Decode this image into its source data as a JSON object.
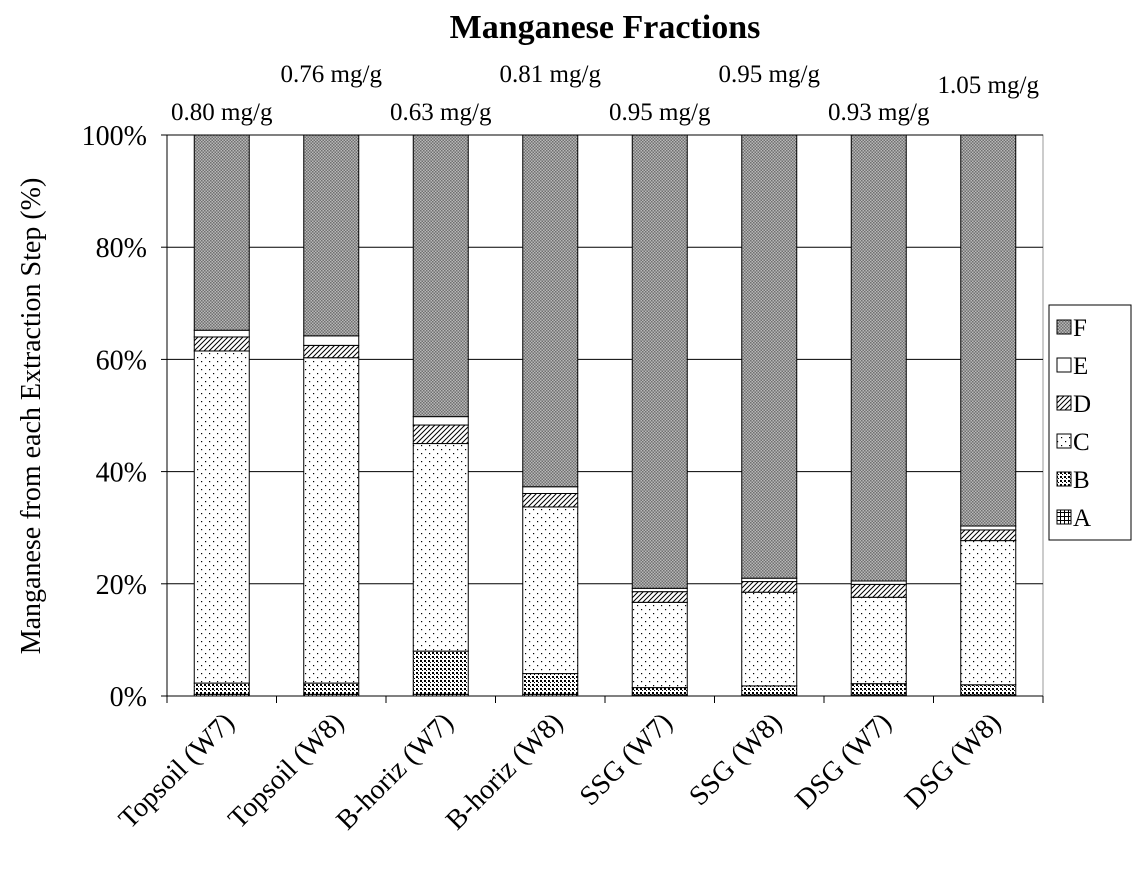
{
  "chart_data": {
    "type": "stacked_bar_percent",
    "title": "Manganese Fractions",
    "y_label": "Manganese from each Extraction Step (%)",
    "categories": [
      "Topsoil (W7)",
      "Topsoil (W8)",
      "B-horiz (W7)",
      "B-horiz (W8)",
      "SSG (W7)",
      "SSG (W8)",
      "DSG (W7)",
      "DSG (W8)"
    ],
    "totals": [
      "0.80 mg/g",
      "0.76 mg/g",
      "0.63 mg/g",
      "0.81 mg/g",
      "0.95 mg/g",
      "0.95 mg/g",
      "0.93 mg/g",
      "1.05 mg/g"
    ],
    "series": [
      {
        "name": "A",
        "color": "#000000",
        "values": [
          0.3,
          0.3,
          0.3,
          0.3,
          0.2,
          0.2,
          0.2,
          0.2
        ]
      },
      {
        "name": "B",
        "color": "#000000",
        "values": [
          2.0,
          2.0,
          7.7,
          3.7,
          1.3,
          1.6,
          2.0,
          1.8
        ]
      },
      {
        "name": "C",
        "color": "#000000",
        "values": [
          59.2,
          58.0,
          37.0,
          29.7,
          15.2,
          16.7,
          15.4,
          25.7
        ]
      },
      {
        "name": "D",
        "color": "#000000",
        "values": [
          2.5,
          2.2,
          3.3,
          2.4,
          1.9,
          1.9,
          2.3,
          1.9
        ]
      },
      {
        "name": "E",
        "color": "#000000",
        "values": [
          1.2,
          1.7,
          1.5,
          1.2,
          0.6,
          0.6,
          0.6,
          0.7
        ]
      },
      {
        "name": "F",
        "color": "#707070",
        "values": [
          34.8,
          35.8,
          50.2,
          62.7,
          80.8,
          79.0,
          79.5,
          69.7
        ]
      }
    ],
    "ylim": [
      0,
      100
    ],
    "yticks": [
      {
        "value": 0,
        "label": "0%"
      },
      {
        "value": 20,
        "label": "20%"
      },
      {
        "value": 40,
        "label": "40%"
      },
      {
        "value": 60,
        "label": "60%"
      },
      {
        "value": 80,
        "label": "80%"
      },
      {
        "value": 100,
        "label": "100%"
      }
    ],
    "grid": true,
    "legend": "right"
  }
}
